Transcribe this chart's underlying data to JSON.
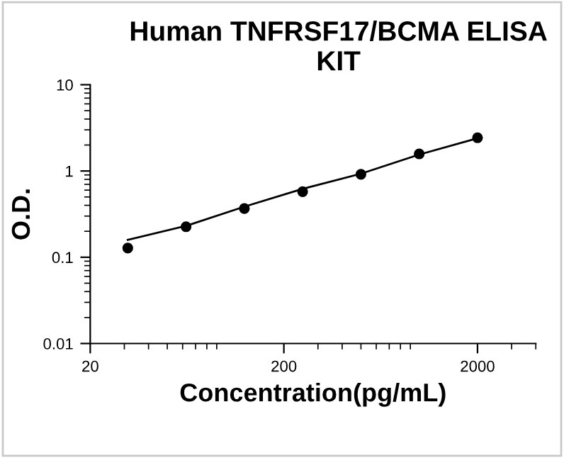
{
  "chart_data": {
    "type": "scatter",
    "title": "Human TNFRSF17/BCMA ELISA KIT",
    "xlabel": "Concentration(pg/mL)",
    "ylabel": "O.D.",
    "log": "xy",
    "xlim": [
      20,
      4000
    ],
    "ylim": [
      0.01,
      10
    ],
    "xticks": [
      20,
      200,
      2000
    ],
    "yticks": [
      0.01,
      0.1,
      1,
      10
    ],
    "grid": false,
    "series": [
      {
        "color": "#000000",
        "marker": "circle",
        "x": [
          31.25,
          62.5,
          125,
          250,
          500,
          1000,
          2000
        ],
        "values": [
          0.128,
          0.226,
          0.367,
          0.576,
          0.916,
          1.58,
          2.43
        ]
      },
      {
        "type": "line",
        "color": "#000000",
        "marker": "none",
        "line_style": "solid",
        "x": [
          31.25,
          62.5,
          125,
          250,
          500,
          1000,
          2000
        ],
        "values": [
          0.159,
          0.231,
          0.386,
          0.62,
          0.93,
          1.55,
          2.4
        ]
      }
    ]
  }
}
